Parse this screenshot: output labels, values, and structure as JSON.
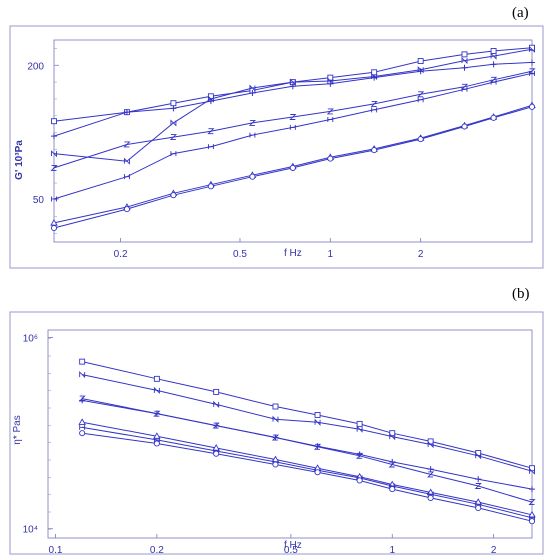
{
  "panel_a_label": "(a)",
  "panel_b_label": "(b)",
  "chart_data": [
    {
      "type": "line",
      "panel": "(a)",
      "xlabel": "f Hz",
      "ylabel": "G' 10³Pa",
      "xscale": "log",
      "yscale": "log",
      "xlim": [
        0.12,
        4.7
      ],
      "ylim": [
        32,
        260
      ],
      "xticks": [
        "0.2",
        "0.5",
        "1",
        "2"
      ],
      "yticks": [
        "50",
        "200"
      ],
      "marker_color": "#3434c8",
      "series": [
        {
          "marker": "square",
          "x": [
            0.12,
            0.21,
            0.3,
            0.4,
            0.55,
            0.75,
            1.0,
            1.4,
            2.0,
            2.8,
            3.5,
            4.7
          ],
          "y": [
            112,
            123,
            135,
            145,
            154,
            168,
            176,
            186,
            209,
            224,
            232,
            240
          ]
        },
        {
          "marker": "N",
          "x": [
            0.12,
            0.21,
            0.3,
            0.4,
            0.55,
            0.75,
            1.0,
            1.4,
            2.0,
            2.8,
            3.5,
            4.7
          ],
          "y": [
            80,
            74,
            110,
            141,
            158,
            168,
            170,
            178,
            191,
            210,
            220,
            236
          ]
        },
        {
          "marker": "plus",
          "x": [
            0.12,
            0.21,
            0.3,
            0.4,
            0.55,
            0.75,
            1.0,
            1.4,
            2.0,
            2.8,
            3.5,
            4.7
          ],
          "y": [
            96,
            123,
            128,
            138,
            150,
            161,
            165,
            176,
            188,
            195,
            202,
            206
          ]
        },
        {
          "marker": "Z",
          "x": [
            0.12,
            0.21,
            0.3,
            0.4,
            0.55,
            0.75,
            1.0,
            1.4,
            2.0,
            2.8,
            3.5,
            4.7
          ],
          "y": [
            69,
            88,
            95,
            101,
            110,
            117,
            124,
            134,
            148,
            160,
            172,
            188
          ]
        },
        {
          "marker": "H",
          "x": [
            0.12,
            0.21,
            0.3,
            0.4,
            0.55,
            0.75,
            1.0,
            1.4,
            2.0,
            2.8,
            3.5,
            4.7
          ],
          "y": [
            50,
            63,
            80,
            86,
            97,
            105,
            114,
            126,
            140,
            156,
            168,
            184
          ]
        },
        {
          "marker": "triangle",
          "x": [
            0.12,
            0.21,
            0.3,
            0.4,
            0.55,
            0.75,
            1.0,
            1.4,
            2.0,
            2.8,
            3.5,
            4.7
          ],
          "y": [
            39,
            46,
            53,
            58,
            64,
            70,
            77,
            84,
            94,
            107,
            117,
            132
          ]
        },
        {
          "marker": "circle",
          "x": [
            0.12,
            0.21,
            0.3,
            0.4,
            0.55,
            0.75,
            1.0,
            1.4,
            2.0,
            2.8,
            3.5,
            4.7
          ],
          "y": [
            37,
            45,
            52,
            57,
            63,
            69,
            76,
            83,
            93,
            106,
            116,
            130
          ]
        }
      ]
    },
    {
      "type": "line",
      "panel": "(b)",
      "xlabel": "f Hz",
      "ylabel": "η* Pas",
      "xscale": "log",
      "yscale": "log",
      "xlim": [
        0.095,
        2.6
      ],
      "ylim": [
        8000,
        1200000
      ],
      "xticks": [
        "0.1",
        "0.2",
        "0.5",
        "1",
        "2"
      ],
      "yticks": [
        "10⁶",
        "10⁴"
      ],
      "marker_color": "#3434c8",
      "series": [
        {
          "marker": "square",
          "x": [
            0.12,
            0.2,
            0.3,
            0.45,
            0.6,
            0.8,
            1.0,
            1.3,
            1.8,
            2.6
          ],
          "y": [
            560000,
            370000,
            270000,
            190000,
            155000,
            125000,
            100000,
            82000,
            62000,
            43000
          ]
        },
        {
          "marker": "N",
          "x": [
            0.12,
            0.2,
            0.3,
            0.45,
            0.6,
            0.8,
            1.0,
            1.3,
            1.8,
            2.6
          ],
          "y": [
            410000,
            280000,
            200000,
            140000,
            130000,
            110000,
            92000,
            76000,
            58000,
            40000
          ]
        },
        {
          "marker": "Z",
          "x": [
            0.12,
            0.2,
            0.3,
            0.45,
            0.6,
            0.8,
            1.0,
            1.3,
            1.8,
            2.6
          ],
          "y": [
            230000,
            160000,
            120000,
            90000,
            72000,
            58000,
            47000,
            37000,
            28000,
            19000
          ]
        },
        {
          "marker": "plus",
          "x": [
            0.12,
            0.2,
            0.3,
            0.45,
            0.6,
            0.8,
            1.0,
            1.3,
            1.8,
            2.6
          ],
          "y": [
            220000,
            160000,
            120000,
            90000,
            73000,
            60000,
            50000,
            42000,
            33000,
            26000
          ]
        },
        {
          "marker": "triangle",
          "x": [
            0.12,
            0.2,
            0.3,
            0.45,
            0.6,
            0.8,
            1.0,
            1.3,
            1.8,
            2.6
          ],
          "y": [
            130000,
            93000,
            70000,
            53000,
            43000,
            35000,
            29000,
            24000,
            19000,
            14000
          ]
        },
        {
          "marker": "H",
          "x": [
            0.12,
            0.2,
            0.3,
            0.45,
            0.6,
            0.8,
            1.0,
            1.3,
            1.8,
            2.6
          ],
          "y": [
            115000,
            85000,
            65000,
            50000,
            41000,
            34000,
            28000,
            23000,
            18000,
            13000
          ]
        },
        {
          "marker": "circle",
          "x": [
            0.12,
            0.2,
            0.3,
            0.45,
            0.6,
            0.8,
            1.0,
            1.3,
            1.8,
            2.6
          ],
          "y": [
            100000,
            78000,
            61000,
            47000,
            39000,
            32000,
            26000,
            21000,
            16500,
            12000
          ]
        }
      ]
    }
  ]
}
